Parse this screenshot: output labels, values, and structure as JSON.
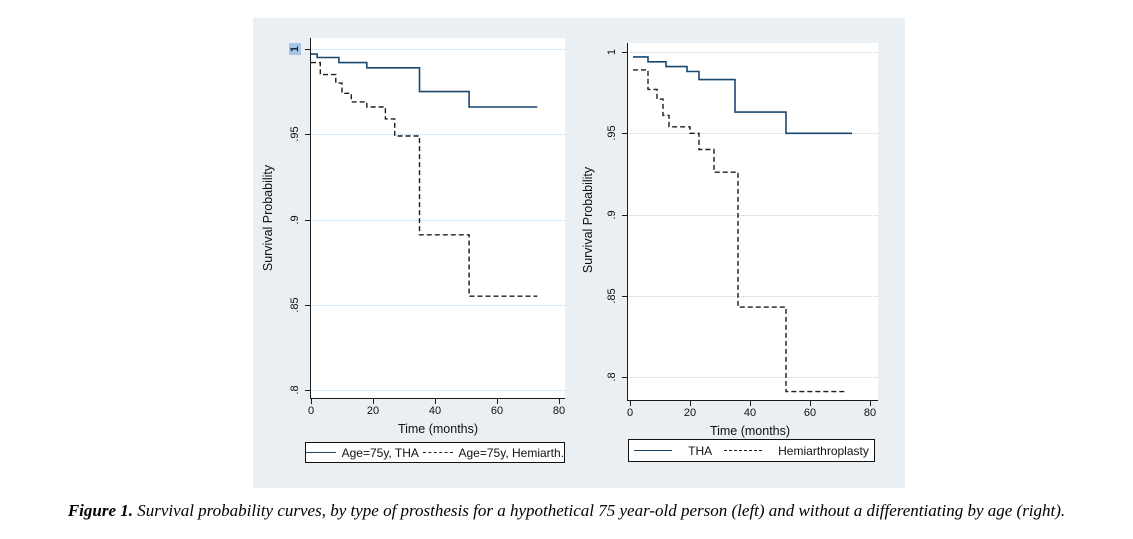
{
  "caption": {
    "label": "Figure 1.",
    "text": " Survival probability curves, by type of prosthesis for a hypothetical 75 year-old person (left) and without a differentiating by age (right)."
  },
  "figure": {
    "background_color": "#e9eff3",
    "plot_background_color": "#ffffff",
    "grid_color": "#bfd4e2",
    "axis_color": "#1a1a1a",
    "highlight_color": "#a5c5e2",
    "tha_line_color": "#1a476f",
    "hemi_line_color": "#1c1c1c"
  },
  "chart_data": [
    {
      "type": "line",
      "subtype": "kaplan-meier-step",
      "title": "",
      "xlabel": "Time (months)",
      "ylabel": "Survival Probability",
      "xlim": [
        0,
        80
      ],
      "ylim": [
        0.8,
        1.0
      ],
      "xticks": [
        "0",
        "20",
        "40",
        "60",
        "80"
      ],
      "xtick_values": [
        0,
        20,
        40,
        60,
        80
      ],
      "yticks": [
        {
          "value": 1.0,
          "label": "1",
          "highlighted": true
        },
        {
          "value": 0.95,
          "label": ".95",
          "highlighted": false
        },
        {
          "value": 0.9,
          "label": ".9",
          "highlighted": false
        },
        {
          "value": 0.85,
          "label": ".85",
          "highlighted": false
        },
        {
          "value": 0.8,
          "label": ".8",
          "highlighted": false
        }
      ],
      "grid": true,
      "legend_position": "bottom",
      "series": [
        {
          "name": "Age=75y, THA",
          "line_style": "solid",
          "color": "#1a476f",
          "points": [
            [
              0,
              0.997
            ],
            [
              2,
              0.995
            ],
            [
              9,
              0.992
            ],
            [
              18,
              0.989
            ],
            [
              35,
              0.975
            ],
            [
              51,
              0.966
            ],
            [
              73,
              0.966
            ]
          ]
        },
        {
          "name": "Age=75y, Hemiarth.",
          "line_style": "dashed",
          "color": "#1c1c1c",
          "points": [
            [
              0,
              0.992
            ],
            [
              3,
              0.985
            ],
            [
              8,
              0.98
            ],
            [
              10,
              0.974
            ],
            [
              13,
              0.969
            ],
            [
              18,
              0.966
            ],
            [
              24,
              0.959
            ],
            [
              27,
              0.949
            ],
            [
              35,
              0.891
            ],
            [
              51,
              0.855
            ],
            [
              73,
              0.855
            ]
          ]
        }
      ]
    },
    {
      "type": "line",
      "subtype": "kaplan-meier-step",
      "title": "",
      "xlabel": "Time (months)",
      "ylabel": "Survival Probability",
      "xlim": [
        0,
        80
      ],
      "ylim": [
        0.8,
        1.0
      ],
      "xticks": [
        "0",
        "20",
        "40",
        "60",
        "80"
      ],
      "xtick_values": [
        0,
        20,
        40,
        60,
        80
      ],
      "yticks": [
        {
          "value": 1.0,
          "label": "1",
          "highlighted": false
        },
        {
          "value": 0.95,
          "label": ".95",
          "highlighted": false
        },
        {
          "value": 0.9,
          "label": ".9",
          "highlighted": false
        },
        {
          "value": 0.85,
          "label": ".85",
          "highlighted": false
        },
        {
          "value": 0.8,
          "label": ".8",
          "highlighted": false
        }
      ],
      "grid": true,
      "legend_position": "bottom",
      "series": [
        {
          "name": "THA",
          "line_style": "solid",
          "color": "#1a476f",
          "points": [
            [
              1,
              0.997
            ],
            [
              6,
              0.994
            ],
            [
              12,
              0.991
            ],
            [
              19,
              0.988
            ],
            [
              23,
              0.983
            ],
            [
              35,
              0.963
            ],
            [
              52,
              0.95
            ],
            [
              74,
              0.95
            ]
          ]
        },
        {
          "name": "Hemiarthroplasty",
          "line_style": "dashed",
          "color": "#1c1c1c",
          "points": [
            [
              1,
              0.989
            ],
            [
              6,
              0.977
            ],
            [
              9,
              0.971
            ],
            [
              11,
              0.961
            ],
            [
              13,
              0.954
            ],
            [
              20,
              0.95
            ],
            [
              23,
              0.94
            ],
            [
              28,
              0.926
            ],
            [
              36,
              0.843
            ],
            [
              52,
              0.791
            ],
            [
              72,
              0.791
            ]
          ]
        }
      ]
    }
  ]
}
